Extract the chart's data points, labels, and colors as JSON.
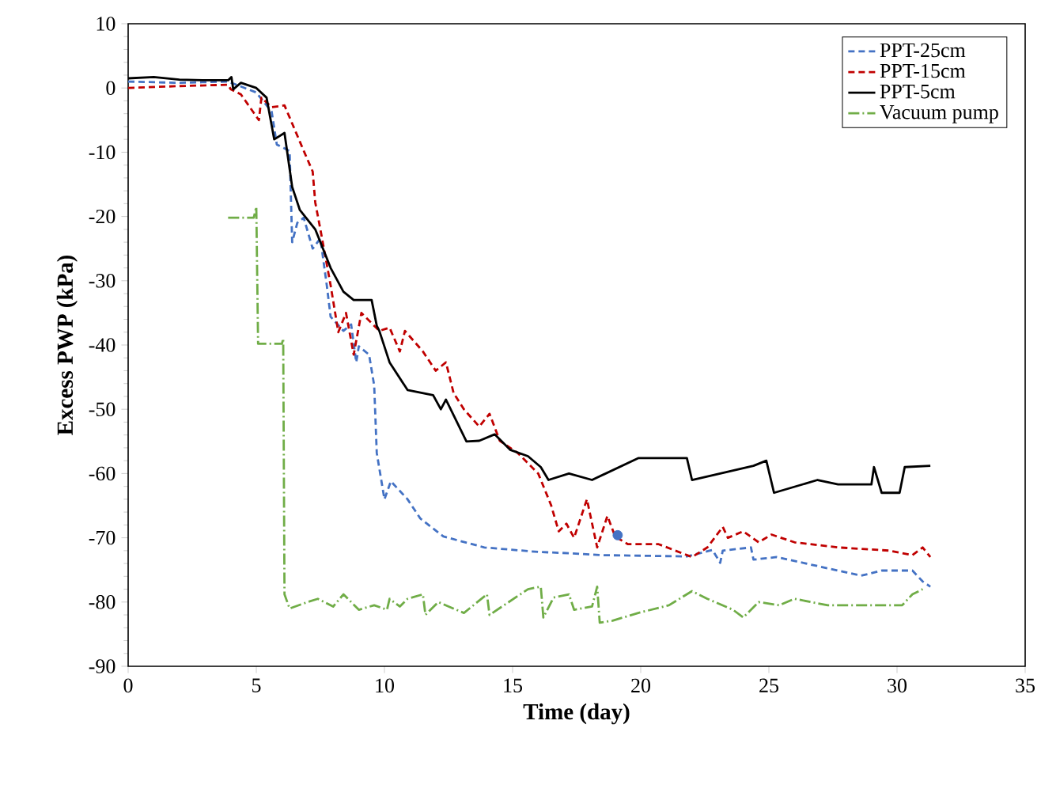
{
  "chart_data": {
    "type": "line",
    "xlabel": "Time (day)",
    "ylabel": "Excess PWP (kPa)",
    "xlim": [
      0,
      35
    ],
    "xticks": [
      0,
      5,
      10,
      15,
      20,
      25,
      30,
      35
    ],
    "ylim": [
      -90,
      10
    ],
    "yticks": [
      -90,
      -80,
      -70,
      -60,
      -50,
      -40,
      -30,
      -20,
      -10,
      0,
      10
    ],
    "grid": false,
    "legend": "top right",
    "series": [
      {
        "name": "PPT-25cm",
        "color": "#4472c4",
        "line_style": "dashed",
        "x": [
          0,
          2,
          3.9,
          5,
          5.6,
          5.8,
          6.3,
          6.4,
          6.6,
          6.85,
          7.2,
          7.5,
          7.75,
          7.9,
          8.4,
          8.7,
          8.9,
          9.0,
          9.4,
          9.6,
          9.7,
          10,
          10.25,
          10.9,
          11.4,
          12.3,
          13.9,
          16,
          17.2,
          18.5,
          21.8,
          22.8,
          23.1,
          23.2,
          24.3,
          24.4,
          25.3,
          26.9,
          28.6,
          29.4,
          30.6,
          31,
          31.3
        ],
        "values": [
          1,
          0.8,
          1,
          -0.7,
          -3.7,
          -8.8,
          -9.8,
          -24,
          -21,
          -20.2,
          -25,
          -23.4,
          -30.7,
          -35.6,
          -37.8,
          -36.8,
          -42.7,
          -40.2,
          -41.5,
          -46.3,
          -56.8,
          -64,
          -61.2,
          -64,
          -67,
          -69.8,
          -71.5,
          -72.2,
          -72.4,
          -72.7,
          -72.9,
          -71.9,
          -73.9,
          -72,
          -71.5,
          -73.4,
          -73,
          -74.4,
          -75.9,
          -75.1,
          -75.1,
          -76.8,
          -77.6
        ]
      },
      {
        "name": "PPT-15cm",
        "color": "#c00000",
        "line_style": "dashed",
        "x": [
          0,
          2,
          3.9,
          4.0,
          4.4,
          5.1,
          5.2,
          5.6,
          6.1,
          6.8,
          7.2,
          7.3,
          7.5,
          7.9,
          8.2,
          8.5,
          8.8,
          9.1,
          9.8,
          10.2,
          10.6,
          10.8,
          11.5,
          12,
          12.4,
          12.7,
          13.1,
          13.7,
          14.1,
          14.5,
          15.2,
          16,
          16.5,
          16.8,
          17.1,
          17.4,
          17.9,
          18.3,
          18.7,
          19,
          19.5,
          20.7,
          22,
          22.6,
          23.2,
          23.4,
          24,
          24.6,
          25.1,
          26,
          27.7,
          29.7,
          30.6,
          31,
          31.3
        ],
        "values": [
          0,
          0.3,
          0.5,
          -0.2,
          -1,
          -5,
          -1.5,
          -3,
          -2.7,
          -9.3,
          -13,
          -17.8,
          -22,
          -30.7,
          -38,
          -35,
          -41.5,
          -35,
          -37.8,
          -37.3,
          -41,
          -37.8,
          -41,
          -44,
          -42.7,
          -47.5,
          -50,
          -52.7,
          -50.7,
          -54.9,
          -56.8,
          -60,
          -64.9,
          -69,
          -67.8,
          -70,
          -64,
          -71.5,
          -66.6,
          -69.8,
          -71,
          -71,
          -73,
          -71.5,
          -68.3,
          -70,
          -69,
          -70.7,
          -69.5,
          -70.7,
          -71.5,
          -72,
          -72.7,
          -71.5,
          -73
        ]
      },
      {
        "name": "PPT-5cm",
        "color": "#000000",
        "line_style": "solid",
        "x": [
          0,
          1,
          2,
          3,
          3.9,
          4.03,
          4.1,
          4.4,
          5.0,
          5.4,
          5.7,
          6.1,
          6.4,
          6.7,
          7.3,
          7.9,
          8.4,
          8.8,
          9.5,
          9.7,
          9.8,
          10.2,
          10.9,
          11.9,
          12.2,
          12.4,
          13.2,
          13.7,
          14.3,
          14.9,
          15.6,
          16.1,
          16.4,
          17.2,
          18.1,
          19.9,
          21.8,
          22,
          24.4,
          24.9,
          25.2,
          26.9,
          27.7,
          29,
          29.1,
          29.4,
          30.1,
          30.3,
          31.3
        ],
        "values": [
          1.5,
          1.7,
          1.3,
          1.2,
          1.2,
          1.7,
          -0.2,
          0.8,
          0,
          -1.5,
          -8,
          -7,
          -15.4,
          -19,
          -22,
          -28,
          -31.7,
          -33,
          -33,
          -37,
          -37.8,
          -42.7,
          -47,
          -47.8,
          -50,
          -48.5,
          -55,
          -54.9,
          -53.9,
          -56.3,
          -57.3,
          -59,
          -61,
          -60,
          -61,
          -57.6,
          -57.6,
          -61,
          -58.8,
          -58,
          -63,
          -61,
          -61.7,
          -61.7,
          -59,
          -63,
          -63,
          -59,
          -58.8
        ]
      },
      {
        "name": "Vacuum pump",
        "color": "#70ad47",
        "line_style": "dashdot",
        "x": [
          3.9,
          4.9,
          5.0,
          5.07,
          6.0,
          6.05,
          6.1,
          6.3,
          7,
          7.4,
          8,
          8.4,
          9,
          9.6,
          10.1,
          10.2,
          10.6,
          10.9,
          11.5,
          11.6,
          12.1,
          13.1,
          14,
          14.1,
          15.6,
          16.1,
          16.2,
          16.6,
          17.2,
          17.4,
          18.1,
          18.3,
          18.4,
          18.9,
          19.9,
          21.1,
          22,
          22.6,
          23.6,
          24,
          24.6,
          25.4,
          26,
          27.3,
          30.2,
          30.6,
          31
        ],
        "values": [
          -20.2,
          -20.2,
          -18.5,
          -39.8,
          -39.8,
          -39,
          -78.8,
          -81,
          -80,
          -79.5,
          -80.7,
          -78.8,
          -81.2,
          -80.5,
          -81.2,
          -79.5,
          -80.7,
          -79.5,
          -78.8,
          -82,
          -80,
          -81.7,
          -78.8,
          -82,
          -78,
          -77.6,
          -82.4,
          -79.3,
          -78.8,
          -81.2,
          -80.7,
          -77.6,
          -83.2,
          -82.9,
          -81.7,
          -80.5,
          -78.3,
          -79.5,
          -81.2,
          -82.4,
          -80,
          -80.5,
          -79.5,
          -80.5,
          -80.5,
          -78.8,
          -78
        ]
      },
      {
        "type": "scatter",
        "color": "#4472c4",
        "marker": "circle",
        "x": [
          19.1
        ],
        "values": [
          -69.6
        ]
      }
    ]
  }
}
